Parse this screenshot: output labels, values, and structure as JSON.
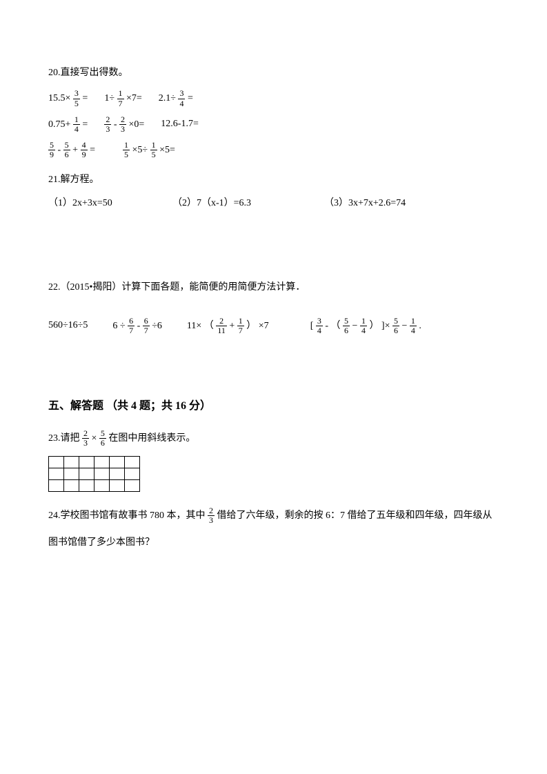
{
  "doc": {
    "font_size_base": 14,
    "font_size_heading": 16,
    "text_color": "#000000",
    "bg_color": "#ffffff"
  },
  "q20": {
    "title": "20.直接写出得数。",
    "row1": {
      "a_pre": "15.5×",
      "a_f_n": "3",
      "a_f_d": "5",
      "a_post": " =",
      "b_pre": "1÷",
      "b_f_n": "1",
      "b_f_d": "7",
      "b_post": " ×7=",
      "c_pre": "2.1÷",
      "c_f_n": "3",
      "c_f_d": "4",
      "c_post": " ="
    },
    "row2": {
      "a_pre": "0.75+",
      "a_f_n": "1",
      "a_f_d": "4",
      "a_post": " =",
      "b_f1_n": "2",
      "b_f1_d": "3",
      "b_mid": " - ",
      "b_f2_n": "2",
      "b_f2_d": "3",
      "b_post": " ×0=",
      "c": "12.6-1.7="
    },
    "row3": {
      "a_f1_n": "5",
      "a_f1_d": "9",
      "a_m1": "-",
      "a_f2_n": "5",
      "a_f2_d": "6",
      "a_m2": "+",
      "a_f3_n": "4",
      "a_f3_d": "9",
      "a_post": "=",
      "b_f1_n": "1",
      "b_f1_d": "5",
      "b_m1": " ×5÷",
      "b_f2_n": "1",
      "b_f2_d": "5",
      "b_post": " ×5="
    }
  },
  "q21": {
    "title": "21.解方程。",
    "a": "（1）2x+3x=50",
    "b": "（2）7（x-1）=6.3",
    "c": "（3）3x+7x+2.6=74"
  },
  "q22": {
    "title": "22.（2015•揭阳）计算下面各题，能简便的用简便方法计算．",
    "a": "560÷16÷5",
    "b_pre": "6  ÷",
    "b_f1_n": "6",
    "b_f1_d": "7",
    "b_mid": "  -  ",
    "b_f2_n": "6",
    "b_f2_d": "7",
    "b_post": " ÷6",
    "c_pre": "11× （",
    "c_f1_n": "2",
    "c_f1_d": "11",
    "c_mid": "+",
    "c_f2_n": "1",
    "c_f2_d": "7",
    "c_post": "） ×7",
    "d_pre": "[ ",
    "d_f1_n": "3",
    "d_f1_d": "4",
    "d_m1": "  -  （",
    "d_f2_n": "5",
    "d_f2_d": "6",
    "d_m2": "−",
    "d_f3_n": "1",
    "d_f3_d": "4",
    "d_m3": "） ]×",
    "d_f4_n": "5",
    "d_f4_d": "6",
    "d_m4": "−",
    "d_f5_n": "1",
    "d_f5_d": "4",
    "d_post": "  ."
  },
  "section5": {
    "heading": "五、解答题 （共 4 题；共 16 分）"
  },
  "q23": {
    "pre": "23.请把 ",
    "f1_n": "2",
    "f1_d": "3",
    "mid": " × ",
    "f2_n": "5",
    "f2_d": "6",
    "post": " 在图中用斜线表示。",
    "grid_rows": 3,
    "grid_cols": 6
  },
  "q24": {
    "pre": "24.学校图书馆有故事书 780 本，其中 ",
    "f_n": "2",
    "f_d": "3",
    "post1": " 借给了六年级，剩余的按 6：7 借给了五年级和四年级，四年级从",
    "line2": "图书馆借了多少本图书？"
  }
}
